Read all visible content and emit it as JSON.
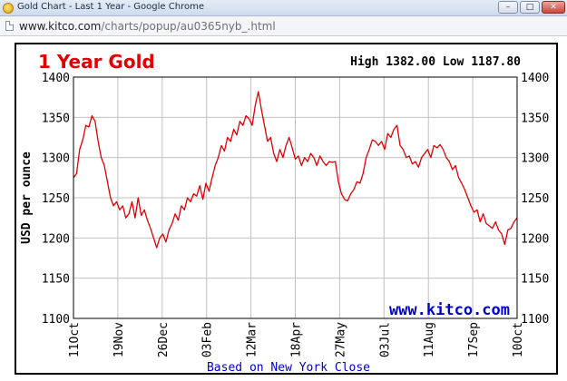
{
  "window": {
    "title": "Gold Chart - Last 1 Year - Google Chrome",
    "buttons": {
      "minimize": "–",
      "maximize": "□",
      "close": "✕"
    }
  },
  "address_bar": {
    "url_host": "www.kitco.com",
    "url_path": "/charts/popup/au0365nyb_.html"
  },
  "chart_data": {
    "type": "line",
    "title": "1 Year Gold",
    "high_low": "High 1382.00 Low 1187.80",
    "high": 1382.0,
    "low": 1187.8,
    "ylabel": "USD per ounce",
    "ylim": [
      1100,
      1400
    ],
    "yticks": [
      1100,
      1150,
      1200,
      1250,
      1300,
      1350,
      1400
    ],
    "xtick_labels": [
      "11Oct",
      "19Nov",
      "26Dec",
      "03Feb",
      "12Mar",
      "18Apr",
      "27May",
      "03Jul",
      "11Aug",
      "17Sep",
      "10Oct"
    ],
    "watermark": "www.kitco.com",
    "footer": "Based on New York Close",
    "grid": true,
    "colors": {
      "line": "#e00000",
      "title": "#e00000",
      "watermark": "#0000cc",
      "footer": "#0000cc",
      "grid": "#c0c0c0"
    },
    "series": [
      {
        "values": [
          1275,
          1280,
          1310,
          1322,
          1340,
          1338,
          1352,
          1345,
          1320,
          1300,
          1290,
          1270,
          1250,
          1240,
          1245,
          1235,
          1240,
          1225,
          1230,
          1245,
          1225,
          1250,
          1228,
          1235,
          1222,
          1212,
          1200,
          1188,
          1200,
          1205,
          1195,
          1210,
          1218,
          1230,
          1222,
          1240,
          1235,
          1250,
          1245,
          1255,
          1252,
          1265,
          1248,
          1268,
          1258,
          1275,
          1290,
          1300,
          1315,
          1308,
          1325,
          1320,
          1335,
          1328,
          1345,
          1340,
          1352,
          1348,
          1340,
          1365,
          1382,
          1360,
          1340,
          1320,
          1325,
          1305,
          1295,
          1310,
          1300,
          1315,
          1325,
          1312,
          1298,
          1302,
          1290,
          1300,
          1295,
          1305,
          1300,
          1290,
          1302,
          1295,
          1290,
          1295,
          1294,
          1295,
          1270,
          1255,
          1248,
          1246,
          1255,
          1260,
          1270,
          1268,
          1280,
          1300,
          1310,
          1322,
          1320,
          1315,
          1320,
          1310,
          1330,
          1325,
          1335,
          1340,
          1315,
          1310,
          1300,
          1302,
          1292,
          1295,
          1288,
          1300,
          1305,
          1310,
          1300,
          1315,
          1312,
          1316,
          1310,
          1300,
          1295,
          1285,
          1290,
          1275,
          1268,
          1260,
          1250,
          1240,
          1232,
          1235,
          1220,
          1230,
          1218,
          1215,
          1212,
          1220,
          1210,
          1205,
          1192,
          1210,
          1212,
          1220,
          1225
        ]
      }
    ]
  }
}
